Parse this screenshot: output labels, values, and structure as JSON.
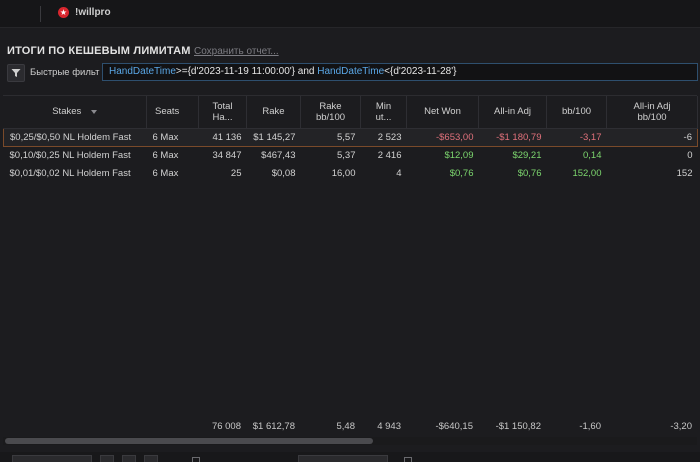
{
  "app": {
    "logo_text": "!willpro",
    "logo_star": "★"
  },
  "report": {
    "title": "ИТОГИ ПО КЕШЕВЫМ ЛИМИТАМ",
    "save_link": "Сохранить отчет..."
  },
  "filter": {
    "label": "Быстрые фильт",
    "kw1": "HandDateTime",
    "val1": ">={d'2023-11-19 11:00:00'} and ",
    "kw2": "HandDateTime",
    "val2": "<{d'2023-11-28'}"
  },
  "table": {
    "columns": [
      {
        "line1": "Stakes",
        "line2": ""
      },
      {
        "line1": "Seats",
        "line2": ""
      },
      {
        "line1": "Total",
        "line2": "Ha..."
      },
      {
        "line1": "Rake",
        "line2": ""
      },
      {
        "line1": "Rake",
        "line2": "bb/100"
      },
      {
        "line1": "Min",
        "line2": "ut..."
      },
      {
        "line1": "Net Won",
        "line2": ""
      },
      {
        "line1": "All-in Adj",
        "line2": ""
      },
      {
        "line1": "bb/100",
        "line2": ""
      },
      {
        "line1": "All-in Adj",
        "line2": "bb/100"
      }
    ],
    "rows": [
      {
        "stakes": "$0,25/$0,50 NL Holdem Fast",
        "seats": "6 Max",
        "hands": "41 136",
        "rake": "$1 145,27",
        "rake_bb": "5,57",
        "minutes": "2 523",
        "net_won": "-$653,00",
        "allin_adj": "-$1 180,79",
        "bb100": "-3,17",
        "allin_bb100": "-6"
      },
      {
        "stakes": "$0,10/$0,25 NL Holdem Fast",
        "seats": "6 Max",
        "hands": "34 847",
        "rake": "$467,43",
        "rake_bb": "5,37",
        "minutes": "2 416",
        "net_won": "$12,09",
        "allin_adj": "$29,21",
        "bb100": "0,14",
        "allin_bb100": "0"
      },
      {
        "stakes": "$0,01/$0,02 NL Holdem Fast",
        "seats": "6 Max",
        "hands": "25",
        "rake": "$0,08",
        "rake_bb": "16,00",
        "minutes": "4",
        "net_won": "$0,76",
        "allin_adj": "$0,76",
        "bb100": "152,00",
        "allin_bb100": "152"
      }
    ],
    "totals": {
      "hands": "76 008",
      "rake": "$1 612,78",
      "rake_bb": "5,48",
      "minutes": "4 943",
      "net_won": "-$640,15",
      "allin_adj": "-$1 150,82",
      "bb100": "-1,60",
      "allin_bb100": "-3,20"
    }
  },
  "colors": {
    "negative": "#e0717b",
    "positive": "#7cd66e",
    "accent_filter": "#5aa7e6",
    "selection_border": "#7a4a2a"
  }
}
